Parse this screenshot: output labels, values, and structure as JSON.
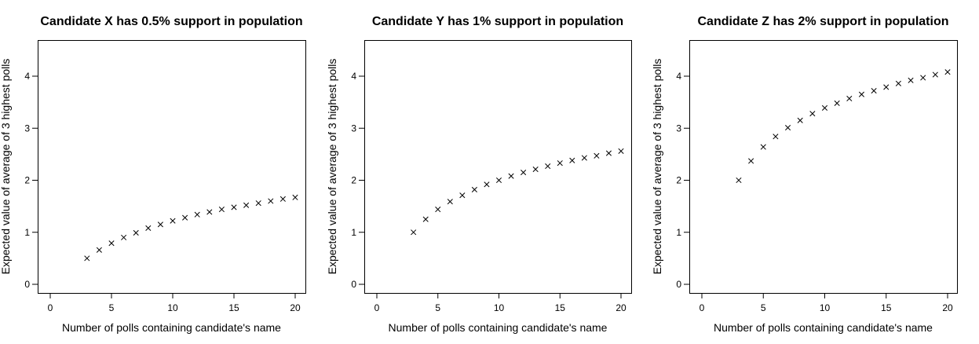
{
  "chart_data": [
    {
      "type": "scatter",
      "title": "Candidate X has 0.5% support in population",
      "xlabel": "Number of polls containing candidate's name",
      "ylabel": "Expected value of average of 3 highest polls",
      "xlim": [
        0,
        20
      ],
      "ylim": [
        0,
        4.5
      ],
      "xticks": [
        0,
        5,
        10,
        15,
        20
      ],
      "yticks": [
        0,
        1,
        2,
        3,
        4
      ],
      "grid": false,
      "marker": "x",
      "x": [
        3,
        4,
        5,
        6,
        7,
        8,
        9,
        10,
        11,
        12,
        13,
        14,
        15,
        16,
        17,
        18,
        19,
        20
      ],
      "y": [
        0.5,
        0.66,
        0.79,
        0.9,
        0.99,
        1.08,
        1.15,
        1.22,
        1.28,
        1.34,
        1.39,
        1.44,
        1.48,
        1.52,
        1.56,
        1.6,
        1.64,
        1.67
      ]
    },
    {
      "type": "scatter",
      "title": "Candidate Y has 1% support in population",
      "xlabel": "Number of polls containing candidate's name",
      "ylabel": "Expected value of average of 3 highest polls",
      "xlim": [
        0,
        20
      ],
      "ylim": [
        0,
        4.5
      ],
      "xticks": [
        0,
        5,
        10,
        15,
        20
      ],
      "yticks": [
        0,
        1,
        2,
        3,
        4
      ],
      "grid": false,
      "marker": "x",
      "x": [
        3,
        4,
        5,
        6,
        7,
        8,
        9,
        10,
        11,
        12,
        13,
        14,
        15,
        16,
        17,
        18,
        19,
        20
      ],
      "y": [
        1.0,
        1.25,
        1.44,
        1.59,
        1.71,
        1.82,
        1.92,
        2.0,
        2.08,
        2.15,
        2.21,
        2.27,
        2.33,
        2.38,
        2.43,
        2.47,
        2.52,
        2.56
      ]
    },
    {
      "type": "scatter",
      "title": "Candidate Z has 2% support in population",
      "xlabel": "Number of polls containing candidate's name",
      "ylabel": "Expected value of average of 3 highest polls",
      "xlim": [
        0,
        20
      ],
      "ylim": [
        0,
        4.5
      ],
      "xticks": [
        0,
        5,
        10,
        15,
        20
      ],
      "yticks": [
        0,
        1,
        2,
        3,
        4
      ],
      "grid": false,
      "marker": "x",
      "x": [
        3,
        4,
        5,
        6,
        7,
        8,
        9,
        10,
        11,
        12,
        13,
        14,
        15,
        16,
        17,
        18,
        19,
        20
      ],
      "y": [
        2.0,
        2.37,
        2.64,
        2.84,
        3.01,
        3.15,
        3.28,
        3.39,
        3.48,
        3.57,
        3.65,
        3.72,
        3.79,
        3.86,
        3.92,
        3.97,
        4.03,
        4.08
      ]
    }
  ]
}
